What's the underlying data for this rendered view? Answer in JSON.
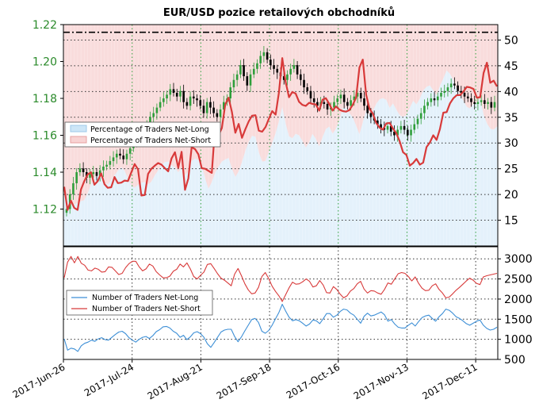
{
  "title": "EUR/USD pozice retailových obchodníků",
  "colors": {
    "net_long_line": "#3d8fd6",
    "net_short_line": "#d83a3a",
    "net_long_fill": "#cde6f7",
    "net_short_fill": "#f8d3d3",
    "price_up": "#2e9e3a",
    "price_down": "#000000",
    "left_axis_text": "#2a8a2a",
    "date_grid": "#2e9e3a"
  },
  "chart_data": [
    {
      "type": "candlestick",
      "panel": "top",
      "x_tick_labels": [
        "2017-Jun-26",
        "2017-Jul-24",
        "2017-Aug-21",
        "2017-Sep-18",
        "2017-Oct-16",
        "2017-Nov-13",
        "2017-Dec-11"
      ],
      "x_range": [
        "2017-Jun-26",
        "2017-Dec-20"
      ],
      "left_axis": {
        "ylim": [
          1.1,
          1.22
        ],
        "ticks": [
          "1.22",
          "1.20",
          "1.18",
          "1.16",
          "1.14",
          "1.12"
        ]
      },
      "right_axis": {
        "ylim": [
          10,
          53
        ],
        "ticks": [
          "50",
          "45",
          "40",
          "35",
          "30",
          "25",
          "20",
          "15"
        ]
      },
      "reference_line": 51.5,
      "price_close_series": [
        1.12,
        1.128,
        1.134,
        1.14,
        1.142,
        1.14,
        1.137,
        1.139,
        1.14,
        1.138,
        1.141,
        1.143,
        1.144,
        1.146,
        1.148,
        1.15,
        1.149,
        1.147,
        1.15,
        1.153,
        1.156,
        1.158,
        1.16,
        1.163,
        1.166,
        1.17,
        1.172,
        1.175,
        1.178,
        1.18,
        1.182,
        1.185,
        1.183,
        1.181,
        1.184,
        1.178,
        1.176,
        1.181,
        1.18,
        1.179,
        1.176,
        1.172,
        1.178,
        1.175,
        1.172,
        1.17,
        1.174,
        1.178,
        1.18,
        1.186,
        1.19,
        1.193,
        1.198,
        1.192,
        1.187,
        1.193,
        1.196,
        1.199,
        1.203,
        1.205,
        1.201,
        1.198,
        1.196,
        1.194,
        1.192,
        1.19,
        1.193,
        1.196,
        1.198,
        1.193,
        1.19,
        1.186,
        1.184,
        1.18,
        1.178,
        1.176,
        1.178,
        1.177,
        1.174,
        1.175,
        1.178,
        1.18,
        1.182,
        1.178,
        1.176,
        1.179,
        1.181,
        1.183,
        1.18,
        1.176,
        1.172,
        1.17,
        1.168,
        1.166,
        1.164,
        1.163,
        1.165,
        1.162,
        1.16,
        1.163,
        1.165,
        1.163,
        1.16,
        1.163,
        1.166,
        1.169,
        1.172,
        1.176,
        1.178,
        1.18,
        1.179,
        1.181,
        1.183,
        1.184,
        1.186,
        1.188,
        1.187,
        1.184,
        1.183,
        1.181,
        1.18,
        1.178,
        1.177,
        1.178,
        1.179,
        1.177,
        1.178,
        1.175,
        1.178
      ],
      "series": [
        {
          "name": "Percentage of Traders Net-Long",
          "values": [
            20.5,
            19.2,
            18.3,
            18.0,
            18.4,
            18.7,
            18.9,
            20.2,
            22.0,
            23.1,
            24.1,
            23.4,
            22.3,
            21.9,
            22.8,
            23.7,
            24.6,
            25.3,
            24.6,
            23.1,
            21.7,
            21.3,
            21.9,
            22.3,
            22.4,
            21.9,
            22.5,
            23.7,
            24.7,
            25.7,
            26.3,
            26.4,
            25.7,
            25.2,
            24.3,
            25.2,
            23.7,
            24.5,
            26.5,
            27.0,
            26.7,
            25.6,
            23.1,
            21.1,
            22.4,
            24.2,
            25.4,
            26.4,
            26.8,
            27.1,
            25.0,
            23.4,
            24.5,
            26.3,
            28.5,
            30.2,
            31.4,
            31.2,
            28.2,
            26.4,
            26.5,
            28.3,
            30.0,
            31.9,
            34.2,
            37.0,
            33.8,
            31.3,
            30.9,
            31.8,
            31.5,
            30.4,
            29.1,
            30.1,
            31.8,
            30.8,
            29.3,
            31.1,
            32.7,
            33.2,
            31.8,
            32.8,
            34.4,
            36.8,
            36.9,
            35.8,
            35.0,
            33.4,
            31.7,
            34.0,
            36.3,
            35.4,
            36.2,
            37.6,
            38.5,
            38.7,
            38.4,
            36.8,
            37.7,
            36.5,
            35.4,
            35.1,
            35.4,
            36.8,
            38.2,
            37.5,
            38.6,
            40.2,
            40.9,
            41.2,
            40.2,
            39.2,
            41.1,
            42.5,
            44.1,
            43.4,
            42.2,
            40.4,
            39.3,
            38.2,
            37.0,
            36.7,
            37.6,
            37.9,
            38.7,
            35.5,
            33.8,
            32.8,
            32.6,
            33.2
          ],
          "color": "#3d8fd6"
        },
        {
          "name": "Percentage of Traders Net-Short",
          "values": [
            79.5,
            80.8,
            81.7,
            82.0,
            81.6,
            81.3,
            81.1,
            79.8,
            78.0,
            76.9,
            75.9,
            76.6,
            77.7,
            78.1,
            77.2,
            76.3,
            75.4,
            74.7,
            75.4,
            76.9,
            78.3,
            78.7,
            78.1,
            77.7,
            77.6,
            78.1,
            77.5,
            76.3,
            75.3,
            74.3,
            73.7,
            73.6,
            74.3,
            74.8,
            75.7,
            74.8,
            76.3,
            75.5,
            73.5,
            73.0,
            73.3,
            74.4,
            76.9,
            78.9,
            77.6,
            75.8,
            74.6,
            73.6,
            73.2,
            72.9,
            75.0,
            76.6,
            75.5,
            73.7,
            71.5,
            69.8,
            68.6,
            68.8,
            71.8,
            73.6,
            73.5,
            71.7,
            70.0,
            68.1,
            65.8,
            63.0,
            66.2,
            68.7,
            69.1,
            68.2,
            68.5,
            69.6,
            70.9,
            69.9,
            68.2,
            69.2,
            70.7,
            68.9,
            67.3,
            66.8,
            68.2,
            67.2,
            65.6,
            63.2,
            63.1,
            64.2,
            65.0,
            66.6,
            68.3,
            66.0,
            63.7,
            64.6,
            63.8,
            62.4,
            61.5,
            61.3,
            61.6,
            63.2,
            62.3,
            63.5,
            64.6,
            64.9,
            64.6,
            63.2,
            61.8,
            62.5,
            61.4,
            59.8,
            59.1,
            58.8,
            59.8,
            60.8,
            58.9,
            57.5,
            55.9,
            56.6,
            57.8,
            59.6,
            60.7,
            61.8,
            63.0,
            63.3,
            62.4,
            62.1,
            61.3,
            64.5,
            66.2,
            67.2,
            67.4,
            66.8
          ],
          "plotted_series": [
            21.5,
            17.0,
            18.8,
            17.4,
            17.0,
            21.0,
            22.6,
            23.9,
            24.3,
            21.9,
            22.6,
            24.1,
            22.0,
            21.3,
            21.4,
            23.4,
            22.2,
            22.3,
            22.7,
            22.6,
            24.3,
            25.9,
            24.9,
            19.8,
            19.9,
            24.0,
            25.0,
            25.6,
            26.1,
            25.8,
            25.1,
            24.5,
            27.0,
            28.2,
            25.2,
            28.3,
            20.9,
            23.1,
            29.2,
            28.8,
            27.8,
            25.1,
            25.0,
            24.6,
            24.2,
            33.5,
            31.5,
            32.9,
            37.5,
            38.8,
            36.0,
            32.0,
            33.7,
            31.0,
            32.7,
            34.2,
            35.3,
            35.4,
            32.4,
            32.2,
            33.1,
            34.7,
            36.2,
            35.5,
            39.8,
            46.5,
            41.9,
            38.9,
            39.9,
            39.6,
            38.0,
            37.4,
            37.2,
            37.8,
            37.6,
            37.5,
            36.3,
            38.4,
            38.7,
            37.6,
            36.3,
            37.1,
            36.5,
            36.2,
            36.1,
            36.4,
            37.4,
            38.8,
            44.7,
            46.2,
            39.4,
            36.6,
            35.7,
            33.9,
            33.0,
            32.6,
            33.8,
            33.9,
            32.8,
            31.9,
            30.3,
            28.2,
            27.7,
            25.6,
            26.1,
            26.9,
            25.8,
            26.2,
            29.2,
            30.1,
            31.5,
            30.6,
            32.7,
            35.9,
            36.0,
            37.7,
            38.7,
            39.3,
            39.3,
            40.0,
            40.9,
            40.8,
            40.5,
            38.8,
            38.9,
            43.6,
            45.6,
            41.7,
            42.1,
            41.0
          ],
          "color": "#d83a3a"
        }
      ],
      "legend": {
        "placement": "center-left",
        "entries": [
          "Percentage of Traders Net-Long",
          "Percentage of Traders Net-Short"
        ]
      }
    },
    {
      "type": "line",
      "panel": "bottom",
      "right_axis": {
        "ylim": [
          500,
          3300
        ],
        "ticks": [
          "3000",
          "2500",
          "2000",
          "1500",
          "1000",
          "500"
        ]
      },
      "series": [
        {
          "name": "Number of Traders Net-Long",
          "values": [
            1010,
            730,
            780,
            760,
            700,
            840,
            900,
            930,
            980,
            950,
            1010,
            1040,
            990,
            980,
            1050,
            1120,
            1180,
            1200,
            1140,
            1040,
            980,
            930,
            1000,
            1050,
            1070,
            1020,
            1090,
            1190,
            1240,
            1310,
            1320,
            1280,
            1200,
            1150,
            1050,
            1100,
            990,
            1060,
            1160,
            1190,
            1140,
            1050,
            890,
            800,
            920,
            1050,
            1180,
            1230,
            1250,
            1250,
            1070,
            940,
            1060,
            1210,
            1350,
            1490,
            1520,
            1420,
            1200,
            1150,
            1220,
            1350,
            1510,
            1670,
            1870,
            1700,
            1550,
            1460,
            1490,
            1460,
            1400,
            1330,
            1380,
            1480,
            1460,
            1390,
            1510,
            1640,
            1640,
            1550,
            1600,
            1690,
            1750,
            1730,
            1650,
            1600,
            1500,
            1400,
            1570,
            1650,
            1580,
            1600,
            1640,
            1680,
            1610,
            1450,
            1490,
            1380,
            1300,
            1280,
            1280,
            1350,
            1410,
            1330,
            1440,
            1540,
            1580,
            1600,
            1520,
            1450,
            1560,
            1640,
            1750,
            1720,
            1650,
            1560,
            1520,
            1460,
            1390,
            1350,
            1400,
            1450,
            1480,
            1350,
            1270,
            1230,
            1250,
            1300
          ],
          "color": "#3d8fd6"
        },
        {
          "name": "Number of Traders Net-Short",
          "values": [
            2530,
            2920,
            3060,
            2900,
            3060,
            2890,
            2840,
            2720,
            2700,
            2770,
            2740,
            2670,
            2680,
            2800,
            2790,
            2700,
            2610,
            2640,
            2780,
            2880,
            2940,
            2940,
            2800,
            2700,
            2750,
            2870,
            2820,
            2680,
            2600,
            2530,
            2530,
            2570,
            2690,
            2740,
            2870,
            2800,
            2900,
            2750,
            2560,
            2500,
            2590,
            2670,
            2860,
            2880,
            2760,
            2630,
            2520,
            2470,
            2400,
            2330,
            2620,
            2760,
            2580,
            2380,
            2230,
            2130,
            2150,
            2290,
            2560,
            2660,
            2510,
            2320,
            2190,
            2080,
            1940,
            2110,
            2280,
            2420,
            2370,
            2380,
            2430,
            2500,
            2440,
            2300,
            2330,
            2460,
            2350,
            2160,
            2150,
            2310,
            2240,
            2120,
            2030,
            2080,
            2200,
            2260,
            2380,
            2440,
            2250,
            2150,
            2210,
            2200,
            2150,
            2120,
            2240,
            2400,
            2370,
            2500,
            2630,
            2660,
            2640,
            2560,
            2450,
            2550,
            2390,
            2270,
            2210,
            2220,
            2330,
            2380,
            2240,
            2150,
            2030,
            2050,
            2130,
            2220,
            2290,
            2370,
            2450,
            2520,
            2470,
            2390,
            2360,
            2550,
            2580,
            2600,
            2620,
            2640
          ],
          "color": "#d83a3a"
        }
      ],
      "legend": {
        "placement": "center-left",
        "entries": [
          "Number of Traders Net-Long",
          "Number of Traders Net-Short"
        ]
      }
    }
  ]
}
